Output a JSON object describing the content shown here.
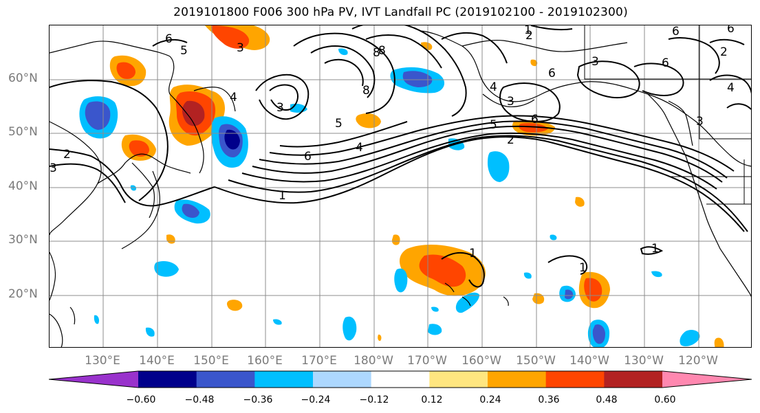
{
  "title": "2019101800 F006 300 hPa PV, IVT Landfall PC (2019102100 - 2019102300)",
  "lat_labels": [
    "60°N",
    "50°N",
    "40°N",
    "30°N",
    "20°N"
  ],
  "lon_labels": [
    "130°E",
    "140°E",
    "150°E",
    "160°E",
    "170°E",
    "180°W",
    "170°W",
    "160°W",
    "150°W",
    "140°W",
    "130°W",
    "120°W"
  ],
  "colorbar": {
    "ticks": [
      "−0.60",
      "−0.48",
      "−0.36",
      "−0.24",
      "−0.12",
      "0.12",
      "0.24",
      "0.36",
      "0.48",
      "0.60"
    ],
    "colors": [
      "#9932cc",
      "#00008b",
      "#3a56cc",
      "#00bfff",
      "#add8ff",
      "#ffffff",
      "#ffe680",
      "#ffa500",
      "#ff4500",
      "#b22222",
      "#ff88b0"
    ]
  },
  "contour_labels": [
    "6",
    "5",
    "3",
    "4",
    "3",
    "8",
    "8",
    "1",
    "2",
    "6",
    "4",
    "3",
    "2",
    "6",
    "5",
    "2",
    "3",
    "6",
    "5",
    "4",
    "6",
    "1",
    "2",
    "3",
    "1",
    "1",
    "1",
    "8",
    "6",
    "3",
    "4",
    "6",
    "2"
  ],
  "icons": {
    "coastline": "coastline-icon"
  }
}
